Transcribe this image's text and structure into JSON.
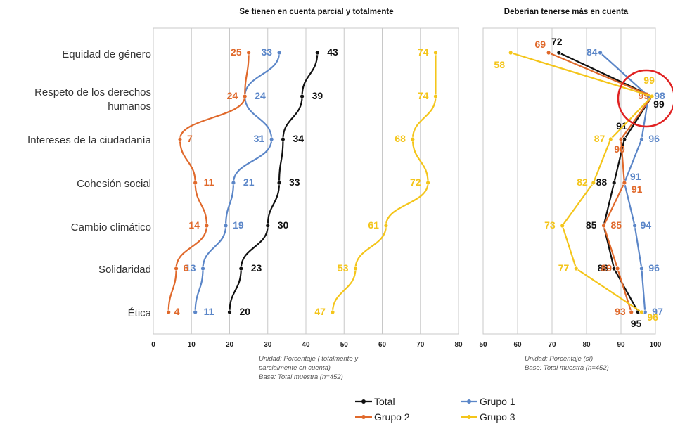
{
  "chart_data": [
    {
      "type": "line",
      "title": "Se tienen en cuenta parcial y totalmente",
      "categories": [
        "Equidad de género",
        "Respeto de los derechos humanos",
        "Intereses de la ciudadanía",
        "Cohesión social",
        "Cambio climático",
        "Solidaridad",
        "Ética"
      ],
      "xlim": [
        0,
        80
      ],
      "xticks": [
        0,
        10,
        20,
        30,
        40,
        50,
        60,
        70,
        80
      ],
      "grid": true,
      "orientation": "horizontal",
      "series": [
        {
          "name": "Total",
          "color": "#111111",
          "values": [
            43,
            39,
            34,
            33,
            30,
            23,
            20
          ]
        },
        {
          "name": "Grupo 1",
          "color": "#5b86c8",
          "values": [
            33,
            24,
            31,
            21,
            19,
            13,
            11
          ]
        },
        {
          "name": "Grupo 2",
          "color": "#e0692b",
          "values": [
            25,
            24,
            7,
            11,
            14,
            6,
            4
          ]
        },
        {
          "name": "Grupo 3",
          "color": "#f4c51a",
          "values": [
            74,
            74,
            68,
            72,
            61,
            53,
            47
          ]
        }
      ],
      "note_lines": [
        "Unidad: Porcentaje ( totalmente  y",
        "parcialmente en cuenta)",
        "Base: Total muestra (n=452)"
      ]
    },
    {
      "type": "line",
      "title": "Deberían tenerse más en cuenta",
      "categories": [
        "Equidad de género",
        "Respeto de los derechos humanos",
        "Intereses de la ciudadanía",
        "Cohesión social",
        "Cambio climático",
        "Solidaridad",
        "Ética"
      ],
      "xlim": [
        50,
        100
      ],
      "xticks": [
        50,
        60,
        70,
        80,
        90,
        100
      ],
      "grid": true,
      "orientation": "horizontal",
      "series": [
        {
          "name": "Total",
          "color": "#111111",
          "values": [
            72,
            99,
            91,
            88,
            85,
            88,
            95
          ]
        },
        {
          "name": "Grupo 1",
          "color": "#5b86c8",
          "values": [
            84,
            98,
            96,
            91,
            94,
            96,
            97
          ]
        },
        {
          "name": "Grupo 2",
          "color": "#e0692b",
          "values": [
            69,
            99,
            90,
            91,
            85,
            89,
            93
          ]
        },
        {
          "name": "Grupo 3",
          "color": "#f4c51a",
          "values": [
            58,
            99,
            87,
            82,
            73,
            77,
            96
          ]
        }
      ],
      "annotation": "red circle highlighting the values for Respeto de los derechos humanos",
      "note_lines": [
        "Unidad: Porcentaje (sí)",
        "Base: Total muestra (n=452)"
      ]
    }
  ],
  "legend": {
    "position": "bottom",
    "entries": [
      {
        "name": "Total",
        "color": "#111111"
      },
      {
        "name": "Grupo 1",
        "color": "#5b86c8"
      },
      {
        "name": "Grupo 2",
        "color": "#e0692b"
      },
      {
        "name": "Grupo 3",
        "color": "#f4c51a"
      }
    ]
  },
  "colors": {
    "grid": "#c8c8c8",
    "axis": "#555555",
    "highlight_circle": "#e02222"
  }
}
